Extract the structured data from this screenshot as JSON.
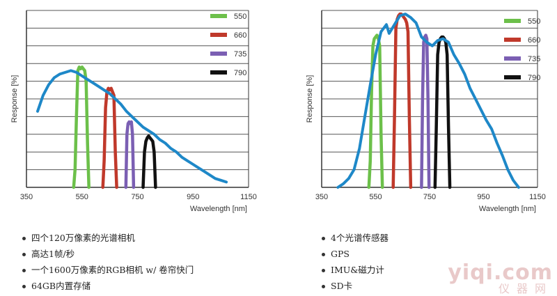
{
  "colors": {
    "response_curve": "#1e88c8",
    "band_550": "#6cc04a",
    "band_660": "#c0392b",
    "band_735": "#7b5fb3",
    "band_790": "#111111",
    "grid": "#555555"
  },
  "chart_data": [
    {
      "type": "line",
      "ylabel": "Response [%]",
      "xlabel": "Wavelength [nm]",
      "xlim": [
        350,
        1150
      ],
      "ylim": [
        0,
        100
      ],
      "x_ticks": [
        "350",
        "550",
        "750",
        "950",
        "1150"
      ],
      "grid": "horizontal",
      "legend_position": "top-right",
      "legend": [
        "550",
        "660",
        "735",
        "790"
      ],
      "series": [
        {
          "name": "",
          "x": [
            390,
            410,
            430,
            450,
            470,
            490,
            510,
            530,
            550,
            570,
            590,
            610,
            630,
            650,
            670,
            690,
            710,
            730,
            750,
            770,
            790,
            810,
            830,
            850,
            870,
            890,
            910,
            930,
            950,
            970,
            990,
            1010,
            1030,
            1050,
            1070
          ],
          "y": [
            43,
            52,
            58,
            62,
            64,
            65,
            66,
            65,
            63,
            61,
            59,
            57,
            55,
            53,
            50,
            47,
            43,
            40,
            37,
            34,
            32,
            30,
            27,
            25,
            22,
            20,
            17,
            15,
            13,
            11,
            9,
            7,
            5,
            4,
            3
          ]
        },
        {
          "name": "550",
          "x": [
            520,
            525,
            530,
            535,
            540,
            545,
            550,
            555,
            560,
            565,
            570,
            575
          ],
          "y": [
            0,
            10,
            40,
            66,
            68,
            67,
            68,
            67,
            66,
            60,
            25,
            0
          ]
        },
        {
          "name": "660",
          "x": [
            625,
            630,
            635,
            640,
            645,
            650,
            655,
            660,
            665,
            670,
            675
          ],
          "y": [
            0,
            15,
            45,
            54,
            56,
            55,
            56,
            54,
            52,
            20,
            0
          ]
        },
        {
          "name": "735",
          "x": [
            708,
            712,
            716,
            720,
            724,
            728,
            732,
            736
          ],
          "y": [
            0,
            30,
            36,
            37,
            36,
            37,
            30,
            0
          ]
        },
        {
          "name": "790",
          "x": [
            770,
            775,
            780,
            785,
            790,
            795,
            800,
            805,
            810,
            815
          ],
          "y": [
            0,
            20,
            26,
            28,
            29,
            28,
            27,
            26,
            20,
            0
          ]
        }
      ]
    },
    {
      "type": "line",
      "ylabel": "Response [%]",
      "xlabel": "Wavelength [nm]",
      "xlim": [
        350,
        1150
      ],
      "ylim": [
        0,
        100
      ],
      "x_ticks": [
        "350",
        "550",
        "750",
        "950",
        "1150"
      ],
      "grid": "horizontal",
      "legend_position": "top-right",
      "legend": [
        "550",
        "660",
        "735",
        "790"
      ],
      "series": [
        {
          "name": "",
          "x": [
            410,
            430,
            450,
            470,
            490,
            510,
            530,
            550,
            570,
            590,
            600,
            620,
            640,
            660,
            680,
            700,
            720,
            740,
            760,
            780,
            800,
            820,
            840,
            860,
            880,
            900,
            920,
            940,
            960,
            980,
            1000,
            1020,
            1040,
            1060,
            1080
          ],
          "y": [
            0,
            2,
            5,
            10,
            22,
            40,
            58,
            75,
            88,
            92,
            87,
            92,
            97,
            98,
            96,
            93,
            85,
            82,
            80,
            83,
            84,
            82,
            75,
            70,
            64,
            56,
            50,
            44,
            38,
            33,
            25,
            18,
            10,
            4,
            0
          ]
        },
        {
          "name": "550",
          "x": [
            525,
            530,
            535,
            540,
            545,
            550,
            555,
            560,
            565,
            570,
            575
          ],
          "y": [
            0,
            15,
            55,
            80,
            84,
            85,
            86,
            84,
            80,
            30,
            0
          ]
        },
        {
          "name": "660",
          "x": [
            615,
            620,
            625,
            630,
            635,
            640,
            645,
            650,
            655,
            660,
            665,
            670,
            675,
            680
          ],
          "y": [
            0,
            40,
            90,
            95,
            97,
            98,
            98,
            97,
            96,
            95,
            93,
            88,
            40,
            0
          ]
        },
        {
          "name": "735",
          "x": [
            720,
            724,
            728,
            732,
            736,
            740,
            744,
            748
          ],
          "y": [
            0,
            50,
            82,
            85,
            86,
            84,
            50,
            0
          ]
        },
        {
          "name": "790",
          "x": [
            770,
            775,
            780,
            785,
            790,
            795,
            800,
            805,
            810,
            815,
            820,
            825
          ],
          "y": [
            0,
            35,
            75,
            82,
            84,
            85,
            85,
            84,
            82,
            75,
            35,
            0
          ]
        }
      ]
    }
  ],
  "left_bullets": [
    "四个120万像素的光谱相机",
    "高达1帧/秒",
    "一个1600万像素的RGB相机 w/ 卷帘快门",
    "64GB内置存储"
  ],
  "right_bullets": [
    "4个光谱传感器",
    "GPS",
    "IMU&磁力计",
    "SD卡"
  ],
  "watermark": {
    "line1": "yiqi.com",
    "line2": "仪器网"
  }
}
